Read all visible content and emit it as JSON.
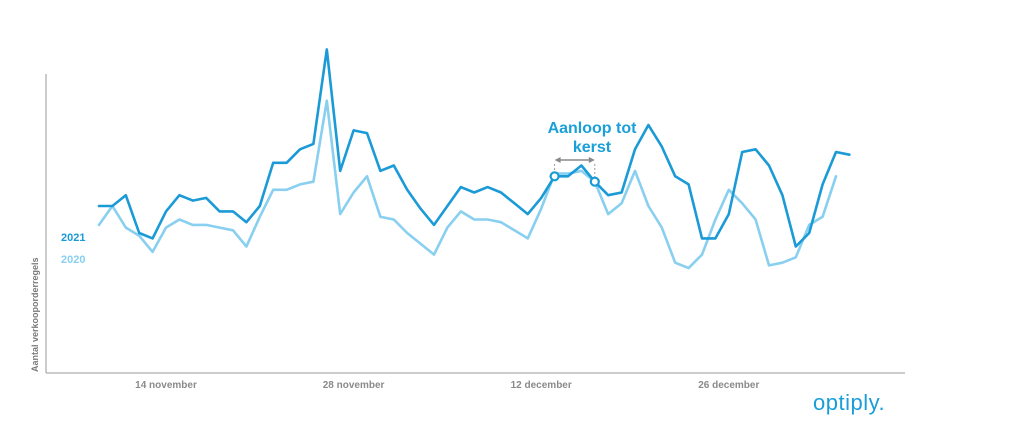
{
  "chart_data": {
    "type": "line",
    "ylabel": "Aantal verkooporderregels",
    "xlabel": "",
    "xticks": [
      "14 november",
      "28 november",
      "12 december",
      "26 december"
    ],
    "xtick_index": [
      5,
      19,
      33,
      47
    ],
    "ylim": [
      0,
      100
    ],
    "series": [
      {
        "name": "2021",
        "color": "#1a9ad6",
        "values": [
          40,
          40,
          44,
          30,
          28,
          38,
          44,
          42,
          43,
          38,
          38,
          34,
          40,
          56,
          56,
          61,
          63,
          98,
          53,
          68,
          67,
          53,
          55,
          46,
          39,
          33,
          40,
          47,
          45,
          47,
          45,
          41,
          37,
          43,
          51,
          51,
          55,
          49,
          44,
          45,
          61,
          70,
          62,
          51,
          48,
          28,
          28,
          37,
          60,
          61,
          55,
          44,
          25,
          30,
          48,
          60,
          59
        ]
      },
      {
        "name": "2020",
        "color": "#88cff0",
        "values": [
          33,
          40,
          32,
          29,
          23,
          32,
          35,
          33,
          33,
          32,
          31,
          25,
          36,
          46,
          46,
          48,
          49,
          79,
          37,
          45,
          51,
          36,
          35,
          30,
          26,
          22,
          32,
          38,
          35,
          35,
          34,
          31,
          28,
          39,
          52,
          52,
          53,
          49,
          37,
          41,
          53,
          40,
          32,
          19,
          17,
          22,
          35,
          46,
          41,
          35,
          18,
          19,
          21,
          33,
          36,
          51
        ]
      }
    ],
    "annotation": {
      "text_line1": "Aanloop tot",
      "text_line2": "kerst",
      "start_index": 34,
      "end_index": 37
    }
  },
  "brand": {
    "logo_text": "optiply."
  }
}
